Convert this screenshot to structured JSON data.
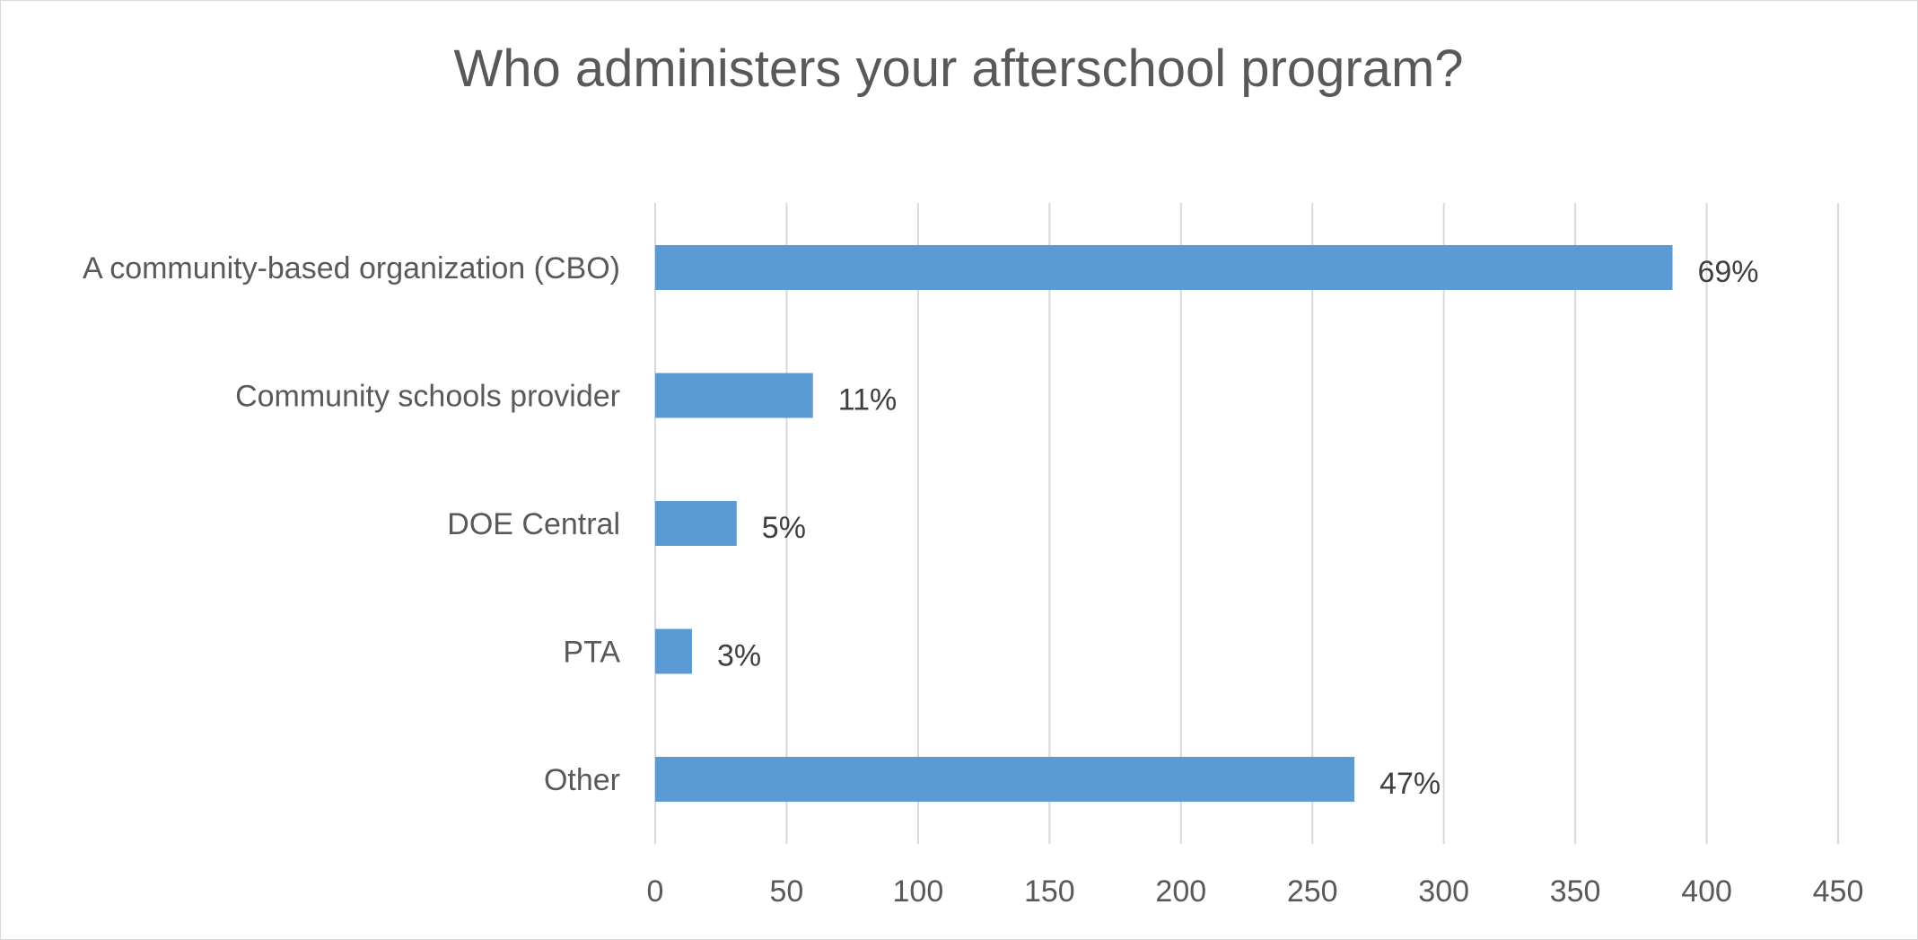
{
  "chart_data": {
    "type": "bar",
    "orientation": "horizontal",
    "title": "Who administers your afterschool program?",
    "xlabel": "",
    "ylabel": "",
    "categories": [
      "A community-based organization (CBO)",
      "Community schools provider",
      "DOE Central",
      "PTA",
      "Other"
    ],
    "values": [
      387,
      60,
      31,
      14,
      266
    ],
    "data_labels": [
      "69%",
      "11%",
      "5%",
      "3%",
      "47%"
    ],
    "xlim": [
      0,
      450
    ],
    "xticks": [
      0,
      50,
      100,
      150,
      200,
      250,
      300,
      350,
      400,
      450
    ],
    "xtick_labels": [
      "0",
      "50",
      "100",
      "150",
      "200",
      "250",
      "300",
      "350",
      "400",
      "450"
    ],
    "grid": "vertical",
    "legend": "none",
    "colors": {
      "bar": "#5b9bd5",
      "gridline": "#d9d9d9",
      "text": "#595959",
      "data_label": "#404040"
    }
  }
}
